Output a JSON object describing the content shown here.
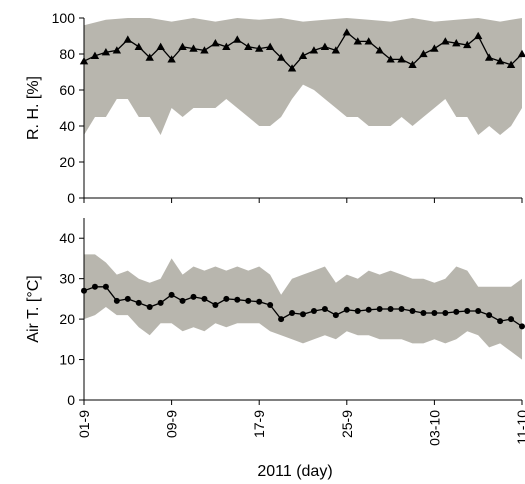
{
  "chart_data": {
    "type": "line",
    "x_title": "2011 (day)",
    "x_tick_labels": [
      "01-9",
      "09-9",
      "17-9",
      "25-9",
      "03-10",
      "11-10"
    ],
    "x_tick_days": [
      0,
      8,
      16,
      24,
      32,
      40
    ],
    "x_range": [
      0,
      40
    ],
    "band_color": "#b8b6ae",
    "line_color": "#000000",
    "panels": [
      {
        "ylabel": "R. H. [%]",
        "ylim": [
          0,
          100
        ],
        "yticks": [
          0,
          20,
          40,
          60,
          80,
          100
        ],
        "marker": "triangle",
        "mean": [
          [
            0,
            76
          ],
          [
            1,
            79
          ],
          [
            2,
            81
          ],
          [
            3,
            82
          ],
          [
            4,
            88
          ],
          [
            5,
            84
          ],
          [
            6,
            78
          ],
          [
            7,
            84
          ],
          [
            8,
            77
          ],
          [
            9,
            84
          ],
          [
            10,
            83
          ],
          [
            11,
            82
          ],
          [
            12,
            86
          ],
          [
            13,
            84
          ],
          [
            14,
            88
          ],
          [
            15,
            84
          ],
          [
            16,
            83
          ],
          [
            17,
            84
          ],
          [
            18,
            78
          ],
          [
            19,
            72
          ],
          [
            20,
            79
          ],
          [
            21,
            82
          ],
          [
            22,
            84
          ],
          [
            23,
            82
          ],
          [
            24,
            92
          ],
          [
            25,
            87
          ],
          [
            26,
            87
          ],
          [
            27,
            82
          ],
          [
            28,
            77
          ],
          [
            29,
            77
          ],
          [
            30,
            74
          ],
          [
            31,
            80
          ],
          [
            32,
            83
          ],
          [
            33,
            87
          ],
          [
            34,
            86
          ],
          [
            35,
            85
          ],
          [
            36,
            90
          ],
          [
            37,
            78
          ],
          [
            38,
            76
          ],
          [
            39,
            74
          ],
          [
            40,
            80
          ],
          [
            41,
            86
          ]
        ],
        "band_upper": [
          [
            0,
            96
          ],
          [
            2,
            99
          ],
          [
            4,
            100
          ],
          [
            6,
            100
          ],
          [
            8,
            98
          ],
          [
            10,
            100
          ],
          [
            12,
            98
          ],
          [
            14,
            100
          ],
          [
            16,
            99
          ],
          [
            18,
            100
          ],
          [
            20,
            98
          ],
          [
            22,
            99
          ],
          [
            24,
            100
          ],
          [
            26,
            99
          ],
          [
            28,
            98
          ],
          [
            30,
            100
          ],
          [
            32,
            98
          ],
          [
            34,
            99
          ],
          [
            36,
            100
          ],
          [
            38,
            98
          ],
          [
            40,
            100
          ],
          [
            41,
            100
          ]
        ],
        "band_lower": [
          [
            0,
            35
          ],
          [
            1,
            45
          ],
          [
            2,
            45
          ],
          [
            3,
            55
          ],
          [
            4,
            55
          ],
          [
            5,
            45
          ],
          [
            6,
            45
          ],
          [
            7,
            35
          ],
          [
            8,
            50
          ],
          [
            9,
            45
          ],
          [
            10,
            50
          ],
          [
            11,
            50
          ],
          [
            12,
            50
          ],
          [
            13,
            55
          ],
          [
            14,
            50
          ],
          [
            15,
            45
          ],
          [
            16,
            40
          ],
          [
            17,
            40
          ],
          [
            18,
            45
          ],
          [
            19,
            55
          ],
          [
            20,
            63
          ],
          [
            21,
            60
          ],
          [
            22,
            55
          ],
          [
            23,
            50
          ],
          [
            24,
            45
          ],
          [
            25,
            45
          ],
          [
            26,
            40
          ],
          [
            27,
            40
          ],
          [
            28,
            40
          ],
          [
            29,
            45
          ],
          [
            30,
            40
          ],
          [
            31,
            45
          ],
          [
            32,
            50
          ],
          [
            33,
            55
          ],
          [
            34,
            45
          ],
          [
            35,
            45
          ],
          [
            36,
            35
          ],
          [
            37,
            40
          ],
          [
            38,
            35
          ],
          [
            39,
            40
          ],
          [
            40,
            50
          ],
          [
            41,
            50
          ]
        ]
      },
      {
        "ylabel": "Air T. [°C]",
        "ylim": [
          0,
          45
        ],
        "yticks": [
          0,
          10,
          20,
          30,
          40
        ],
        "marker": "circle",
        "mean": [
          [
            0,
            27
          ],
          [
            1,
            28
          ],
          [
            2,
            28
          ],
          [
            3,
            24.5
          ],
          [
            4,
            25
          ],
          [
            5,
            24
          ],
          [
            6,
            23
          ],
          [
            7,
            24
          ],
          [
            8,
            26
          ],
          [
            9,
            24.5
          ],
          [
            10,
            25.5
          ],
          [
            11,
            25
          ],
          [
            12,
            23.5
          ],
          [
            13,
            25
          ],
          [
            14,
            24.8
          ],
          [
            15,
            24.5
          ],
          [
            16,
            24.3
          ],
          [
            17,
            23.5
          ],
          [
            18,
            20
          ],
          [
            19,
            21.5
          ],
          [
            20,
            21.2
          ],
          [
            21,
            22
          ],
          [
            22,
            22.5
          ],
          [
            23,
            21
          ],
          [
            24,
            22.3
          ],
          [
            25,
            22
          ],
          [
            26,
            22.3
          ],
          [
            27,
            22.5
          ],
          [
            28,
            22.5
          ],
          [
            29,
            22.5
          ],
          [
            30,
            22
          ],
          [
            31,
            21.5
          ],
          [
            32,
            21.5
          ],
          [
            33,
            21.5
          ],
          [
            34,
            21.8
          ],
          [
            35,
            22
          ],
          [
            36,
            22
          ],
          [
            37,
            21
          ],
          [
            38,
            19.5
          ],
          [
            39,
            20
          ],
          [
            40,
            18.2
          ],
          [
            41,
            22
          ]
        ],
        "band_upper": [
          [
            0,
            36
          ],
          [
            1,
            36
          ],
          [
            2,
            34
          ],
          [
            3,
            31
          ],
          [
            4,
            32
          ],
          [
            5,
            30
          ],
          [
            6,
            29
          ],
          [
            7,
            30
          ],
          [
            8,
            35
          ],
          [
            9,
            31
          ],
          [
            10,
            33
          ],
          [
            11,
            32
          ],
          [
            12,
            33
          ],
          [
            13,
            32
          ],
          [
            14,
            33
          ],
          [
            15,
            32
          ],
          [
            16,
            33
          ],
          [
            17,
            31
          ],
          [
            18,
            26
          ],
          [
            19,
            30
          ],
          [
            20,
            31
          ],
          [
            21,
            32
          ],
          [
            22,
            33
          ],
          [
            23,
            29
          ],
          [
            24,
            31
          ],
          [
            25,
            30
          ],
          [
            26,
            32
          ],
          [
            27,
            31
          ],
          [
            28,
            32
          ],
          [
            29,
            31
          ],
          [
            30,
            30
          ],
          [
            31,
            30
          ],
          [
            32,
            29
          ],
          [
            33,
            30
          ],
          [
            34,
            33
          ],
          [
            35,
            32
          ],
          [
            36,
            28
          ],
          [
            37,
            28
          ],
          [
            38,
            28
          ],
          [
            39,
            28
          ],
          [
            40,
            30
          ],
          [
            41,
            32
          ]
        ],
        "band_lower": [
          [
            0,
            20
          ],
          [
            1,
            21
          ],
          [
            2,
            23
          ],
          [
            3,
            21
          ],
          [
            4,
            21
          ],
          [
            5,
            18
          ],
          [
            6,
            16
          ],
          [
            7,
            19
          ],
          [
            8,
            19
          ],
          [
            9,
            17
          ],
          [
            10,
            18
          ],
          [
            11,
            17
          ],
          [
            12,
            19
          ],
          [
            13,
            18
          ],
          [
            14,
            19
          ],
          [
            15,
            19
          ],
          [
            16,
            19
          ],
          [
            17,
            17
          ],
          [
            18,
            16
          ],
          [
            19,
            15
          ],
          [
            20,
            14
          ],
          [
            21,
            15
          ],
          [
            22,
            16
          ],
          [
            23,
            15
          ],
          [
            24,
            17
          ],
          [
            25,
            16
          ],
          [
            26,
            16
          ],
          [
            27,
            15
          ],
          [
            28,
            15
          ],
          [
            29,
            15
          ],
          [
            30,
            14
          ],
          [
            31,
            14
          ],
          [
            32,
            15
          ],
          [
            33,
            14
          ],
          [
            34,
            15
          ],
          [
            35,
            17
          ],
          [
            36,
            16
          ],
          [
            37,
            13
          ],
          [
            38,
            14
          ],
          [
            39,
            12
          ],
          [
            40,
            10
          ],
          [
            41,
            14
          ]
        ]
      }
    ]
  }
}
